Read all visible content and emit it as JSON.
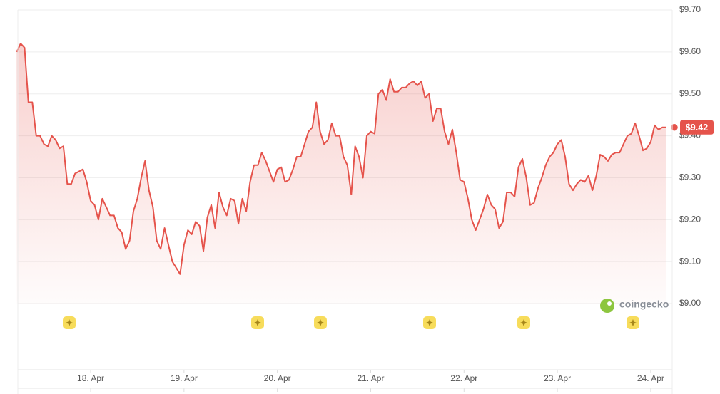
{
  "chart_data": {
    "type": "line",
    "color": "#e5534b",
    "grid": true,
    "xlim": [
      17.22,
      24.23
    ],
    "ylim": [
      9.0,
      9.7
    ],
    "yticks": [
      {
        "value": 9.0,
        "label": "$9.00"
      },
      {
        "value": 9.1,
        "label": "$9.10"
      },
      {
        "value": 9.2,
        "label": "$9.20"
      },
      {
        "value": 9.3,
        "label": "$9.30"
      },
      {
        "value": 9.4,
        "label": "$9.40"
      },
      {
        "value": 9.5,
        "label": "$9.50"
      },
      {
        "value": 9.6,
        "label": "$9.60"
      },
      {
        "value": 9.7,
        "label": "$9.70"
      }
    ],
    "xticks": [
      {
        "value": 18,
        "label": "18. Apr"
      },
      {
        "value": 19,
        "label": "19. Apr"
      },
      {
        "value": 20,
        "label": "20. Apr"
      },
      {
        "value": 21,
        "label": "21. Apr"
      },
      {
        "value": 22,
        "label": "22. Apr"
      },
      {
        "value": 23,
        "label": "23. Apr"
      },
      {
        "value": 24,
        "label": "24. Apr"
      }
    ],
    "x": [
      17.208,
      17.25,
      17.292,
      17.333,
      17.375,
      17.417,
      17.458,
      17.5,
      17.542,
      17.583,
      17.625,
      17.667,
      17.708,
      17.75,
      17.792,
      17.833,
      17.875,
      17.917,
      17.958,
      18,
      18.042,
      18.083,
      18.125,
      18.167,
      18.208,
      18.25,
      18.292,
      18.333,
      18.375,
      18.417,
      18.458,
      18.5,
      18.542,
      18.583,
      18.625,
      18.667,
      18.708,
      18.75,
      18.792,
      18.833,
      18.875,
      18.917,
      18.958,
      19,
      19.042,
      19.083,
      19.125,
      19.167,
      19.208,
      19.25,
      19.292,
      19.333,
      19.375,
      19.417,
      19.458,
      19.5,
      19.542,
      19.583,
      19.625,
      19.667,
      19.708,
      19.75,
      19.792,
      19.833,
      19.875,
      19.917,
      19.958,
      20,
      20.042,
      20.083,
      20.125,
      20.167,
      20.208,
      20.25,
      20.292,
      20.333,
      20.375,
      20.417,
      20.458,
      20.5,
      20.542,
      20.583,
      20.625,
      20.667,
      20.708,
      20.75,
      20.792,
      20.833,
      20.875,
      20.917,
      20.958,
      21,
      21.042,
      21.083,
      21.125,
      21.167,
      21.208,
      21.25,
      21.292,
      21.333,
      21.375,
      21.417,
      21.458,
      21.5,
      21.542,
      21.583,
      21.625,
      21.667,
      21.708,
      21.75,
      21.792,
      21.833,
      21.875,
      21.917,
      21.958,
      22,
      22.042,
      22.083,
      22.125,
      22.167,
      22.208,
      22.25,
      22.292,
      22.333,
      22.375,
      22.417,
      22.458,
      22.5,
      22.542,
      22.583,
      22.625,
      22.667,
      22.708,
      22.75,
      22.792,
      22.833,
      22.875,
      22.917,
      22.958,
      23,
      23.042,
      23.083,
      23.125,
      23.167,
      23.208,
      23.25,
      23.292,
      23.333,
      23.375,
      23.417,
      23.458,
      23.5,
      23.542,
      23.583,
      23.625,
      23.667,
      23.708,
      23.75,
      23.792,
      23.833,
      23.875,
      23.917,
      23.958,
      24,
      24.042,
      24.083,
      24.125,
      24.167
    ],
    "values": [
      9.6,
      9.62,
      9.61,
      9.48,
      9.48,
      9.4,
      9.4,
      9.38,
      9.375,
      9.4,
      9.39,
      9.37,
      9.375,
      9.285,
      9.285,
      9.31,
      9.315,
      9.32,
      9.29,
      9.245,
      9.235,
      9.2,
      9.25,
      9.23,
      9.21,
      9.21,
      9.18,
      9.17,
      9.13,
      9.15,
      9.22,
      9.25,
      9.3,
      9.34,
      9.27,
      9.23,
      9.15,
      9.13,
      9.18,
      9.14,
      9.1,
      9.085,
      9.07,
      9.14,
      9.175,
      9.165,
      9.195,
      9.185,
      9.125,
      9.205,
      9.235,
      9.18,
      9.265,
      9.23,
      9.21,
      9.25,
      9.245,
      9.19,
      9.25,
      9.22,
      9.29,
      9.33,
      9.33,
      9.36,
      9.34,
      9.315,
      9.29,
      9.32,
      9.325,
      9.29,
      9.295,
      9.32,
      9.35,
      9.35,
      9.38,
      9.41,
      9.42,
      9.48,
      9.41,
      9.38,
      9.39,
      9.43,
      9.4,
      9.4,
      9.35,
      9.33,
      9.26,
      9.375,
      9.35,
      9.3,
      9.4,
      9.41,
      9.405,
      9.5,
      9.51,
      9.485,
      9.535,
      9.505,
      9.505,
      9.515,
      9.515,
      9.525,
      9.53,
      9.52,
      9.53,
      9.49,
      9.5,
      9.435,
      9.465,
      9.465,
      9.41,
      9.38,
      9.415,
      9.36,
      9.295,
      9.29,
      9.25,
      9.2,
      9.175,
      9.2,
      9.225,
      9.26,
      9.235,
      9.225,
      9.18,
      9.195,
      9.265,
      9.265,
      9.255,
      9.325,
      9.345,
      9.3,
      9.235,
      9.24,
      9.275,
      9.3,
      9.33,
      9.35,
      9.36,
      9.38,
      9.39,
      9.35,
      9.285,
      9.27,
      9.285,
      9.295,
      9.29,
      9.305,
      9.27,
      9.305,
      9.355,
      9.35,
      9.34,
      9.355,
      9.36,
      9.36,
      9.38,
      9.4,
      9.405,
      9.43,
      9.4,
      9.365,
      9.37,
      9.385,
      9.425,
      9.415,
      9.42,
      9.42
    ],
    "last_price": {
      "value": 9.42,
      "label": "$9.42"
    },
    "watermark": "coingecko"
  }
}
